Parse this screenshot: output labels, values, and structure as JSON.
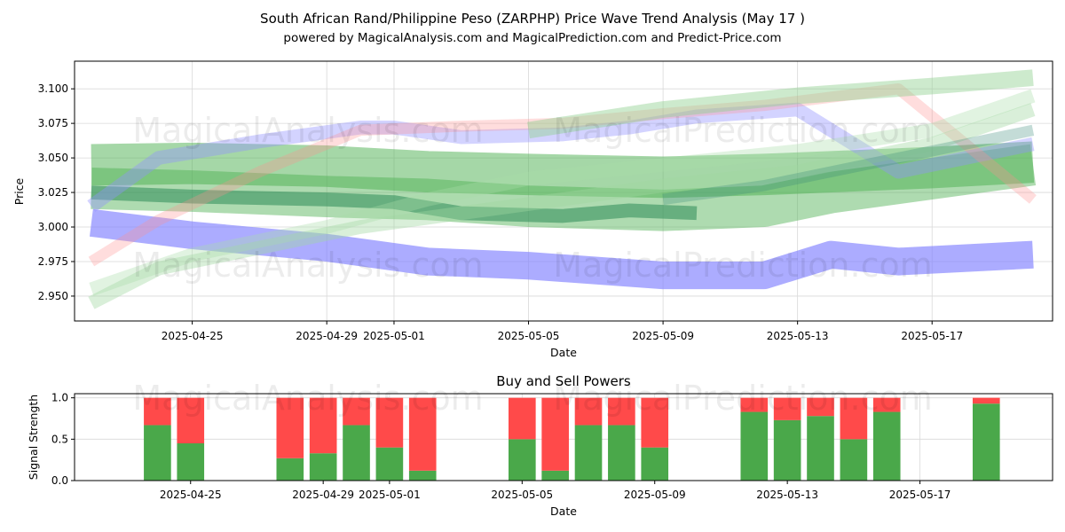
{
  "title_line1": "South African Rand/Philippine Peso (ZARPHP) Price Wave Trend Analysis (May 17 )",
  "title_line2": "powered by MagicalAnalysis.com and MagicalPrediction.com and Predict-Price.com",
  "watermarks": [
    "MagicalAnalysis.com",
    "MagicalPrediction.com"
  ],
  "colors": {
    "buy": "#4aa84a",
    "sell": "#ff4a4a",
    "blue": "#8080ff",
    "green": "#4caf50",
    "pink": "#ffb0b0",
    "grid": "#d9d9d9"
  },
  "chart_data": [
    {
      "type": "line",
      "name": "price-wave-chart",
      "xlabel": "Date",
      "ylabel": "Price",
      "ylim": [
        2.932,
        3.12
      ],
      "xlim": [
        "2025-04-21T12:00",
        "2025-05-20T14:00"
      ],
      "x_ticks": [
        "2025-04-25",
        "2025-04-29",
        "2025-05-01",
        "2025-05-05",
        "2025-05-09",
        "2025-05-13",
        "2025-05-17"
      ],
      "y_ticks": [
        2.95,
        2.975,
        3.0,
        3.025,
        3.05,
        3.075,
        3.1
      ],
      "y_tick_labels": [
        "2.950",
        "2.975",
        "3.000",
        "3.025",
        "3.050",
        "3.075",
        "3.100"
      ],
      "grid": true,
      "series": [
        {
          "name": "blue-low-band",
          "color": "#8080ff",
          "opacity": 0.65,
          "width": 0.02,
          "points": [
            [
              "2025-04-22",
              3.003
            ],
            [
              "2025-04-25",
              2.994
            ],
            [
              "2025-04-29",
              2.985
            ],
            [
              "2025-05-02",
              2.975
            ],
            [
              "2025-05-05",
              2.972
            ],
            [
              "2025-05-09",
              2.965
            ],
            [
              "2025-05-12",
              2.965
            ],
            [
              "2025-05-14",
              2.98
            ],
            [
              "2025-05-16",
              2.975
            ],
            [
              "2025-05-20",
              2.98
            ]
          ]
        },
        {
          "name": "green-wide-band",
          "color": "#4caf50",
          "opacity": 0.5,
          "width": 0.03,
          "points": [
            [
              "2025-04-22",
              3.045
            ],
            [
              "2025-04-25",
              3.046
            ],
            [
              "2025-04-29",
              3.044
            ],
            [
              "2025-05-02",
              3.04
            ],
            [
              "2025-05-05",
              3.038
            ],
            [
              "2025-05-09",
              3.036
            ],
            [
              "2025-05-12",
              3.038
            ],
            [
              "2025-05-14",
              3.04
            ],
            [
              "2025-05-17",
              3.043
            ],
            [
              "2025-05-20",
              3.047
            ]
          ]
        },
        {
          "name": "green-rising-band",
          "color": "#4caf50",
          "opacity": 0.45,
          "width": 0.03,
          "points": [
            [
              "2025-04-22",
              3.028
            ],
            [
              "2025-04-25",
              3.026
            ],
            [
              "2025-04-29",
              3.022
            ],
            [
              "2025-05-02",
              3.02
            ],
            [
              "2025-05-05",
              3.015
            ],
            [
              "2025-05-09",
              3.012
            ],
            [
              "2025-05-12",
              3.015
            ],
            [
              "2025-05-14",
              3.025
            ],
            [
              "2025-05-17",
              3.035
            ],
            [
              "2025-05-20",
              3.045
            ]
          ]
        },
        {
          "name": "dark-green-band",
          "color": "#2e8b57",
          "opacity": 0.55,
          "width": 0.01,
          "points": [
            [
              "2025-04-22",
              3.025
            ],
            [
              "2025-04-25",
              3.022
            ],
            [
              "2025-04-29",
              3.02
            ],
            [
              "2025-05-01",
              3.018
            ],
            [
              "2025-05-03",
              3.01
            ],
            [
              "2025-05-06",
              3.008
            ],
            [
              "2025-05-08",
              3.012
            ],
            [
              "2025-05-10",
              3.01
            ]
          ]
        },
        {
          "name": "purple-upper-band",
          "color": "#9090ff",
          "opacity": 0.4,
          "width": 0.01,
          "points": [
            [
              "2025-04-22",
              3.015
            ],
            [
              "2025-04-24",
              3.05
            ],
            [
              "2025-04-27",
              3.062
            ],
            [
              "2025-04-30",
              3.072
            ],
            [
              "2025-05-01",
              3.072
            ],
            [
              "2025-05-03",
              3.065
            ],
            [
              "2025-05-06",
              3.067
            ],
            [
              "2025-05-08",
              3.072
            ],
            [
              "2025-05-10",
              3.08
            ],
            [
              "2025-05-13",
              3.085
            ],
            [
              "2025-05-16",
              3.04
            ],
            [
              "2025-05-20",
              3.06
            ]
          ]
        },
        {
          "name": "pink-band",
          "color": "#ff9090",
          "opacity": 0.3,
          "width": 0.008,
          "points": [
            [
              "2025-04-22",
              2.975
            ],
            [
              "2025-04-24",
              3.005
            ],
            [
              "2025-04-27",
              3.04
            ],
            [
              "2025-04-30",
              3.07
            ],
            [
              "2025-05-03",
              3.073
            ],
            [
              "2025-05-06",
              3.075
            ],
            [
              "2025-05-09",
              3.082
            ],
            [
              "2025-05-12",
              3.088
            ],
            [
              "2025-05-16",
              3.1
            ],
            [
              "2025-05-18",
              3.06
            ],
            [
              "2025-05-20",
              3.02
            ]
          ]
        },
        {
          "name": "light-green-top-band",
          "color": "#90d090",
          "opacity": 0.45,
          "width": 0.012,
          "points": [
            [
              "2025-05-05",
              3.07
            ],
            [
              "2025-05-09",
              3.085
            ],
            [
              "2025-05-13",
              3.095
            ],
            [
              "2025-05-17",
              3.102
            ],
            [
              "2025-05-20",
              3.108
            ]
          ]
        },
        {
          "name": "light-green-low-band",
          "color": "#a0d8a0",
          "opacity": 0.4,
          "width": 0.01,
          "points": [
            [
              "2025-04-22",
              2.945
            ],
            [
              "2025-04-24",
              2.97
            ],
            [
              "2025-04-27",
              2.985
            ],
            [
              "2025-04-30",
              3.0
            ],
            [
              "2025-05-03",
              3.01
            ],
            [
              "2025-05-06",
              3.02
            ],
            [
              "2025-05-09",
              3.03
            ],
            [
              "2025-05-13",
              3.04
            ],
            [
              "2025-05-17",
              3.06
            ],
            [
              "2025-05-20",
              3.085
            ]
          ]
        },
        {
          "name": "light-green-mid-band",
          "color": "#a8dca8",
          "opacity": 0.35,
          "width": 0.01,
          "points": [
            [
              "2025-04-22",
              2.955
            ],
            [
              "2025-04-25",
              2.98
            ],
            [
              "2025-04-29",
              3.0
            ],
            [
              "2025-05-02",
              3.02
            ],
            [
              "2025-05-05",
              3.035
            ],
            [
              "2025-05-09",
              3.045
            ],
            [
              "2025-05-13",
              3.055
            ],
            [
              "2025-05-17",
              3.07
            ],
            [
              "2025-05-20",
              3.095
            ]
          ]
        },
        {
          "name": "teal-rising-band",
          "color": "#3a8a7a",
          "opacity": 0.3,
          "width": 0.008,
          "points": [
            [
              "2025-05-09",
              3.02
            ],
            [
              "2025-05-12",
              3.03
            ],
            [
              "2025-05-15",
              3.045
            ],
            [
              "2025-05-17",
              3.055
            ],
            [
              "2025-05-20",
              3.07
            ]
          ]
        }
      ]
    },
    {
      "type": "bar",
      "name": "buy-sell-powers",
      "title": "Buy and Sell Powers",
      "xlabel": "Date",
      "ylabel": "Signal Strength",
      "ylim": [
        0,
        1.05
      ],
      "y_ticks": [
        0.0,
        0.5,
        1.0
      ],
      "y_tick_labels": [
        "0.0",
        "0.5",
        "1.0"
      ],
      "x_ticks": [
        "2025-04-25",
        "2025-04-29",
        "2025-05-01",
        "2025-05-05",
        "2025-05-09",
        "2025-05-13",
        "2025-05-17"
      ],
      "grid": true,
      "categories": [
        "2025-04-24",
        "2025-04-25",
        "2025-04-28",
        "2025-04-29",
        "2025-04-30",
        "2025-05-01",
        "2025-05-02",
        "2025-05-05",
        "2025-05-06",
        "2025-05-07",
        "2025-05-08",
        "2025-05-09",
        "2025-05-12",
        "2025-05-13",
        "2025-05-14",
        "2025-05-15",
        "2025-05-16",
        "2025-05-19"
      ],
      "series": [
        {
          "name": "Buy",
          "color": "#4aa84a",
          "values": [
            0.67,
            0.45,
            0.27,
            0.33,
            0.67,
            0.4,
            0.12,
            0.5,
            0.12,
            0.67,
            0.67,
            0.4,
            0.83,
            0.73,
            0.78,
            0.5,
            0.83,
            0.93
          ]
        },
        {
          "name": "Sell",
          "color": "#ff4a4a",
          "values": [
            0.33,
            0.55,
            0.73,
            0.67,
            0.33,
            0.6,
            0.88,
            0.5,
            0.88,
            0.33,
            0.33,
            0.6,
            0.17,
            0.27,
            0.22,
            0.5,
            0.17,
            0.07
          ]
        }
      ]
    }
  ]
}
